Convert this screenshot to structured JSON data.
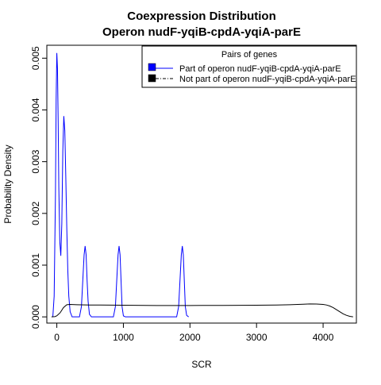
{
  "chart_data": {
    "type": "line",
    "title": [
      "Coexpression Distribution",
      "Operon nudF-yqiB-cpdA-yqiA-parE"
    ],
    "xlabel": "SCR",
    "ylabel": "Probability Density",
    "xlim": [
      -150,
      4500
    ],
    "ylim": [
      -0.00012,
      0.00525
    ],
    "x_ticks": [
      0,
      1000,
      2000,
      3000,
      4000
    ],
    "x_tick_labels": [
      "0",
      "1000",
      "2000",
      "3000",
      "4000"
    ],
    "y_ticks": [
      0.0,
      0.001,
      0.002,
      0.003,
      0.004,
      0.005
    ],
    "y_tick_labels": [
      "0.000",
      "0.001",
      "0.002",
      "0.003",
      "0.004",
      "0.005"
    ],
    "grid": false,
    "legend": {
      "title": "Pairs of genes",
      "placement": "top-right",
      "entries": [
        "Part of operon nudF-yqiB-cpdA-yqiA-parE",
        "Not part of operon nudF-yqiB-cpdA-yqiA-parE"
      ]
    },
    "series": [
      {
        "name": "Part of operon nudF-yqiB-cpdA-yqiA-parE",
        "color": "#0000ff",
        "style": "solid",
        "x": [
          -60,
          -40,
          -20,
          -10,
          0,
          10,
          20,
          30,
          45,
          60,
          75,
          90,
          105,
          120,
          135,
          150,
          165,
          180,
          200,
          230,
          260,
          300,
          340,
          370,
          390,
          410,
          425,
          440,
          455,
          470,
          490,
          520,
          560,
          600,
          700,
          800,
          850,
          880,
          900,
          920,
          935,
          950,
          965,
          980,
          1000,
          1030,
          1070,
          1120,
          1200,
          1500,
          1750,
          1800,
          1830,
          1850,
          1870,
          1885,
          1900,
          1915,
          1930,
          1950,
          1980
        ],
        "y": [
          0.0,
          0.0004,
          0.0024,
          0.0042,
          0.0051,
          0.0048,
          0.0038,
          0.0025,
          0.00145,
          0.00118,
          0.0018,
          0.0032,
          0.00388,
          0.0036,
          0.0027,
          0.0017,
          0.0009,
          0.0004,
          0.0001,
          0.0,
          0.0,
          0.0,
          0.0,
          0.0002,
          0.0007,
          0.0012,
          0.00137,
          0.0012,
          0.0007,
          0.0003,
          5e-05,
          0.0,
          0.0,
          0.0,
          0.0,
          0.0,
          0.0,
          0.0002,
          0.0007,
          0.0012,
          0.00137,
          0.0012,
          0.0007,
          0.0002,
          2e-05,
          0.0,
          0.0,
          0.0,
          0.0,
          0.0,
          0.0,
          0.0,
          0.0002,
          0.0007,
          0.0012,
          0.00137,
          0.0012,
          0.0007,
          0.0002,
          3e-05,
          0.0
        ]
      },
      {
        "name": "Not part of operon nudF-yqiB-cpdA-yqiA-parE",
        "color": "#000000",
        "style": "solid",
        "x": [
          -80,
          -30,
          0,
          50,
          100,
          150,
          200,
          300,
          500,
          1000,
          1500,
          2000,
          2500,
          3000,
          3300,
          3500,
          3700,
          3800,
          3900,
          4000,
          4050,
          4100,
          4150,
          4200,
          4250,
          4300,
          4350,
          4400,
          4450
        ],
        "y": [
          0.0,
          5e-06,
          2e-05,
          8e-05,
          0.00018,
          0.000235,
          0.00024,
          0.000235,
          0.00023,
          0.000225,
          0.00022,
          0.00022,
          0.000222,
          0.000225,
          0.00023,
          0.000235,
          0.000245,
          0.00025,
          0.000248,
          0.00024,
          0.00023,
          0.00021,
          0.00018,
          0.00014,
          0.0001,
          6e-05,
          3e-05,
          1e-05,
          0.0
        ]
      }
    ]
  }
}
